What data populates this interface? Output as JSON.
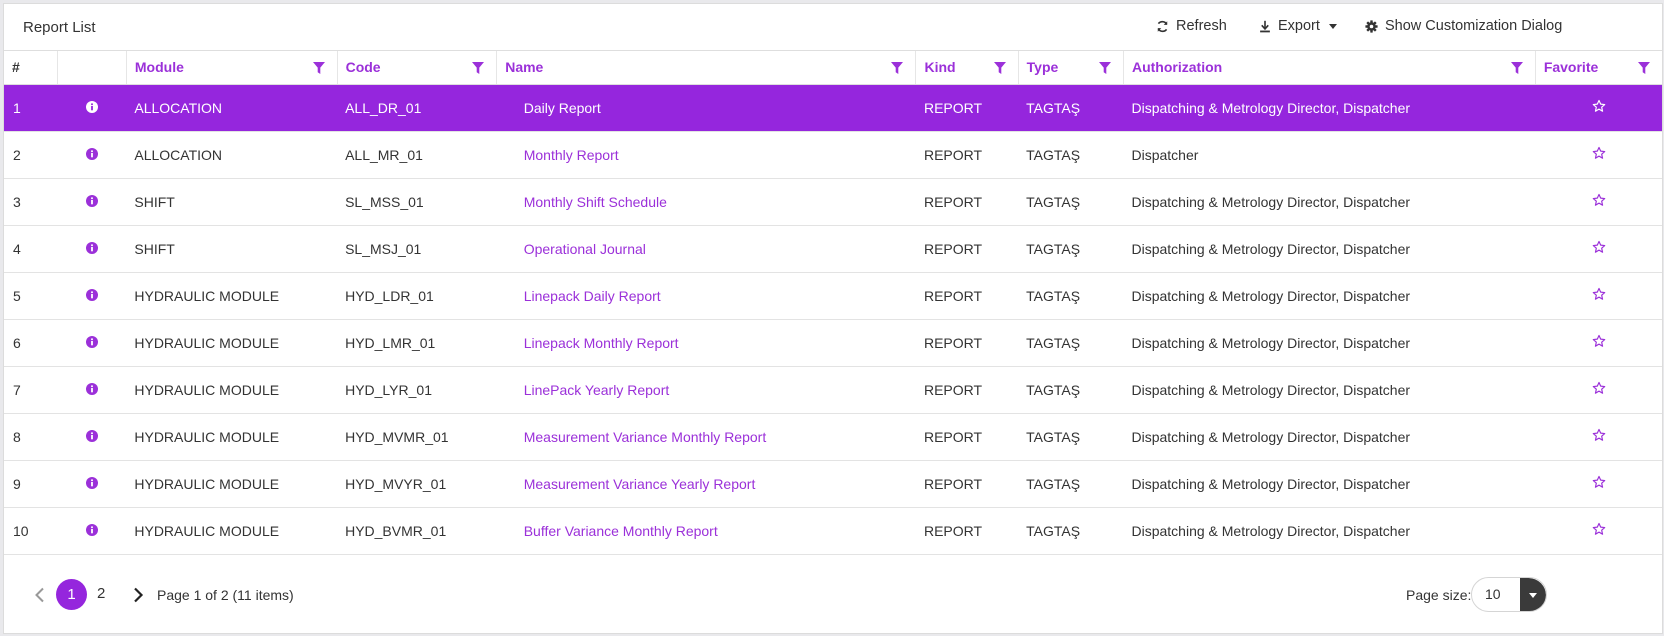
{
  "toolbar": {
    "title": "Report List",
    "refresh_label": "Refresh",
    "export_label": "Export",
    "customize_label": "Show Customization Dialog"
  },
  "columns": {
    "num": "#",
    "module": "Module",
    "code": "Code",
    "name": "Name",
    "kind": "Kind",
    "type": "Type",
    "authorization": "Authorization",
    "favorite": "Favorite"
  },
  "rows": [
    {
      "num": "1",
      "module": "ALLOCATION",
      "code": "ALL_DR_01",
      "name": "Daily Report",
      "kind": "REPORT",
      "type": "TAGTAŞ",
      "authorization": "Dispatching & Metrology Director, Dispatcher"
    },
    {
      "num": "2",
      "module": "ALLOCATION",
      "code": "ALL_MR_01",
      "name": "Monthly Report",
      "kind": "REPORT",
      "type": "TAGTAŞ",
      "authorization": "Dispatcher"
    },
    {
      "num": "3",
      "module": "SHIFT",
      "code": "SL_MSS_01",
      "name": "Monthly Shift Schedule",
      "kind": "REPORT",
      "type": "TAGTAŞ",
      "authorization": "Dispatching & Metrology Director, Dispatcher"
    },
    {
      "num": "4",
      "module": "SHIFT",
      "code": "SL_MSJ_01",
      "name": "Operational Journal",
      "kind": "REPORT",
      "type": "TAGTAŞ",
      "authorization": "Dispatching & Metrology Director, Dispatcher"
    },
    {
      "num": "5",
      "module": "HYDRAULIC MODULE",
      "code": "HYD_LDR_01",
      "name": "Linepack Daily Report",
      "kind": "REPORT",
      "type": "TAGTAŞ",
      "authorization": "Dispatching & Metrology Director, Dispatcher"
    },
    {
      "num": "6",
      "module": "HYDRAULIC MODULE",
      "code": "HYD_LMR_01",
      "name": "Linepack Monthly Report",
      "kind": "REPORT",
      "type": "TAGTAŞ",
      "authorization": "Dispatching & Metrology Director, Dispatcher"
    },
    {
      "num": "7",
      "module": "HYDRAULIC MODULE",
      "code": "HYD_LYR_01",
      "name": "LinePack Yearly Report",
      "kind": "REPORT",
      "type": "TAGTAŞ",
      "authorization": "Dispatching & Metrology Director, Dispatcher"
    },
    {
      "num": "8",
      "module": "HYDRAULIC MODULE",
      "code": "HYD_MVMR_01",
      "name": "Measurement Variance Monthly Report",
      "kind": "REPORT",
      "type": "TAGTAŞ",
      "authorization": "Dispatching & Metrology Director, Dispatcher"
    },
    {
      "num": "9",
      "module": "HYDRAULIC MODULE",
      "code": "HYD_MVYR_01",
      "name": "Measurement Variance Yearly Report",
      "kind": "REPORT",
      "type": "TAGTAŞ",
      "authorization": "Dispatching & Metrology Director, Dispatcher"
    },
    {
      "num": "10",
      "module": "HYDRAULIC MODULE",
      "code": "HYD_BVMR_01",
      "name": "Buffer Variance Monthly Report",
      "kind": "REPORT",
      "type": "TAGTAŞ",
      "authorization": "Dispatching & Metrology Director, Dispatcher"
    }
  ],
  "pager": {
    "page1": "1",
    "page2": "2",
    "info": "Page 1 of 2 (11 items)",
    "page_size_label": "Page size:",
    "page_size_value": "10"
  },
  "colors": {
    "accent": "#9526dd",
    "link": "#9b30d9"
  },
  "icons": {
    "refresh": "refresh-icon",
    "export": "download-icon",
    "customize": "gear-icon",
    "filter": "filter-icon",
    "info": "info-icon",
    "favorite": "star-outline-icon"
  }
}
